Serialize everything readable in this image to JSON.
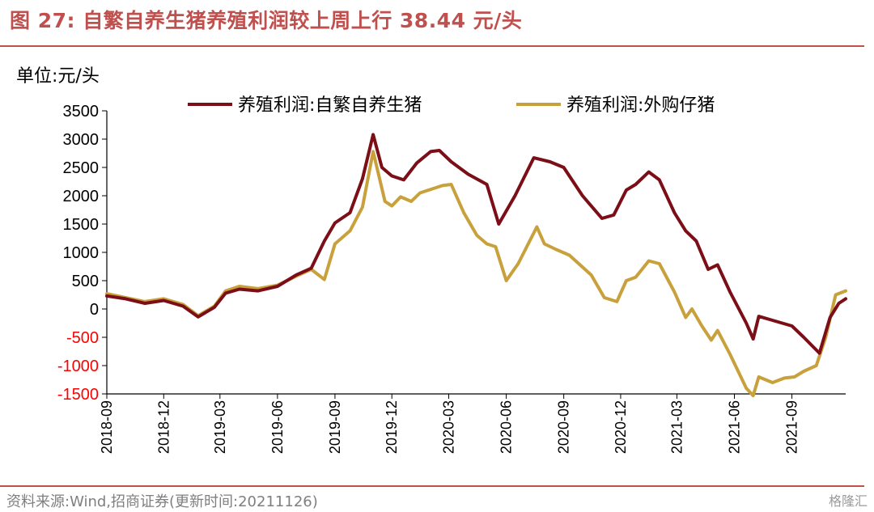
{
  "title": "图 27:  自繁自养生猪养殖利润较上周上行 38.44 元/头",
  "unit_label": "单位:元/头",
  "source": "资料来源:Wind,招商证券(更新时间:20211126)",
  "watermark": "格隆汇",
  "colors": {
    "accent": "#c0504d",
    "series_1": "#7b0e16",
    "series_2": "#c9a13c",
    "negative_tick": "#ff0000",
    "positive_tick": "#000000"
  },
  "chart_data": {
    "type": "line",
    "ylim": [
      -1500,
      3500
    ],
    "yticks": [
      3500,
      3000,
      2500,
      2000,
      1500,
      1000,
      500,
      0,
      -500,
      -1000,
      -1500
    ],
    "xlabels": [
      "2018-09",
      "2018-12",
      "2019-03",
      "2019-06",
      "2019-09",
      "2019-12",
      "2020-03",
      "2020-06",
      "2020-09",
      "2020-12",
      "2021-03",
      "2021-06",
      "2021-09"
    ],
    "x_range": [
      "2018-09",
      "2021-11-26"
    ],
    "legend": [
      "养殖利润:自繁自养生猪",
      "养殖利润:外购仔猪"
    ],
    "legend_position": "top",
    "series": [
      {
        "name": "养殖利润:自繁自养生猪",
        "points": [
          [
            "2018-09-01",
            230
          ],
          [
            "2018-10-01",
            180
          ],
          [
            "2018-11-01",
            100
          ],
          [
            "2018-12-01",
            150
          ],
          [
            "2019-01-01",
            50
          ],
          [
            "2019-01-25",
            -140
          ],
          [
            "2019-02-20",
            30
          ],
          [
            "2019-03-10",
            280
          ],
          [
            "2019-04-01",
            350
          ],
          [
            "2019-05-01",
            320
          ],
          [
            "2019-06-01",
            400
          ],
          [
            "2019-07-01",
            600
          ],
          [
            "2019-07-25",
            720
          ],
          [
            "2019-08-15",
            1200
          ],
          [
            "2019-09-01",
            1520
          ],
          [
            "2019-09-25",
            1700
          ],
          [
            "2019-10-15",
            2300
          ],
          [
            "2019-11-01",
            3080
          ],
          [
            "2019-11-15",
            2500
          ],
          [
            "2019-12-01",
            2350
          ],
          [
            "2019-12-20",
            2280
          ],
          [
            "2020-01-10",
            2580
          ],
          [
            "2020-02-01",
            2780
          ],
          [
            "2020-02-15",
            2800
          ],
          [
            "2020-03-05",
            2600
          ],
          [
            "2020-04-01",
            2380
          ],
          [
            "2020-05-01",
            2200
          ],
          [
            "2020-05-20",
            1500
          ],
          [
            "2020-06-15",
            2000
          ],
          [
            "2020-07-15",
            2670
          ],
          [
            "2020-08-10",
            2600
          ],
          [
            "2020-09-01",
            2500
          ],
          [
            "2020-10-01",
            2000
          ],
          [
            "2020-11-01",
            1600
          ],
          [
            "2020-11-20",
            1660
          ],
          [
            "2020-12-10",
            2100
          ],
          [
            "2020-12-25",
            2200
          ],
          [
            "2021-01-15",
            2420
          ],
          [
            "2021-02-01",
            2280
          ],
          [
            "2021-02-25",
            1700
          ],
          [
            "2021-03-15",
            1380
          ],
          [
            "2021-04-01",
            1200
          ],
          [
            "2021-04-20",
            700
          ],
          [
            "2021-05-05",
            780
          ],
          [
            "2021-05-25",
            300
          ],
          [
            "2021-06-20",
            -250
          ],
          [
            "2021-07-01",
            -530
          ],
          [
            "2021-07-10",
            -130
          ],
          [
            "2021-08-01",
            -200
          ],
          [
            "2021-09-01",
            -300
          ],
          [
            "2021-09-20",
            -500
          ],
          [
            "2021-10-15",
            -780
          ],
          [
            "2021-11-01",
            -150
          ],
          [
            "2021-11-15",
            100
          ],
          [
            "2021-11-26",
            180
          ]
        ]
      },
      {
        "name": "养殖利润:外购仔猪",
        "points": [
          [
            "2018-09-01",
            270
          ],
          [
            "2018-10-01",
            200
          ],
          [
            "2018-11-01",
            130
          ],
          [
            "2018-12-01",
            180
          ],
          [
            "2019-01-01",
            80
          ],
          [
            "2019-01-25",
            -120
          ],
          [
            "2019-02-20",
            50
          ],
          [
            "2019-03-10",
            320
          ],
          [
            "2019-04-01",
            400
          ],
          [
            "2019-05-01",
            360
          ],
          [
            "2019-06-01",
            420
          ],
          [
            "2019-07-01",
            580
          ],
          [
            "2019-07-25",
            700
          ],
          [
            "2019-08-15",
            520
          ],
          [
            "2019-09-01",
            1150
          ],
          [
            "2019-09-25",
            1380
          ],
          [
            "2019-10-15",
            1800
          ],
          [
            "2019-11-01",
            2780
          ],
          [
            "2019-11-20",
            1900
          ],
          [
            "2019-12-01",
            1820
          ],
          [
            "2019-12-15",
            1980
          ],
          [
            "2020-01-01",
            1900
          ],
          [
            "2020-01-15",
            2050
          ],
          [
            "2020-02-20",
            2180
          ],
          [
            "2020-03-05",
            2200
          ],
          [
            "2020-03-25",
            1700
          ],
          [
            "2020-04-15",
            1300
          ],
          [
            "2020-05-01",
            1150
          ],
          [
            "2020-05-15",
            1100
          ],
          [
            "2020-06-01",
            500
          ],
          [
            "2020-06-20",
            800
          ],
          [
            "2020-07-20",
            1450
          ],
          [
            "2020-08-01",
            1150
          ],
          [
            "2020-08-20",
            1050
          ],
          [
            "2020-09-10",
            950
          ],
          [
            "2020-10-15",
            600
          ],
          [
            "2020-11-05",
            200
          ],
          [
            "2020-11-25",
            130
          ],
          [
            "2020-12-10",
            500
          ],
          [
            "2020-12-25",
            560
          ],
          [
            "2021-01-15",
            850
          ],
          [
            "2021-02-01",
            800
          ],
          [
            "2021-02-25",
            300
          ],
          [
            "2021-03-15",
            -150
          ],
          [
            "2021-03-25",
            0
          ],
          [
            "2021-04-10",
            -300
          ],
          [
            "2021-04-25",
            -550
          ],
          [
            "2021-05-05",
            -380
          ],
          [
            "2021-05-25",
            -800
          ],
          [
            "2021-06-20",
            -1400
          ],
          [
            "2021-07-01",
            -1530
          ],
          [
            "2021-07-10",
            -1200
          ],
          [
            "2021-08-01",
            -1300
          ],
          [
            "2021-08-20",
            -1220
          ],
          [
            "2021-09-05",
            -1200
          ],
          [
            "2021-09-20",
            -1100
          ],
          [
            "2021-10-10",
            -1000
          ],
          [
            "2021-10-25",
            -500
          ],
          [
            "2021-11-10",
            250
          ],
          [
            "2021-11-26",
            320
          ]
        ]
      }
    ]
  }
}
